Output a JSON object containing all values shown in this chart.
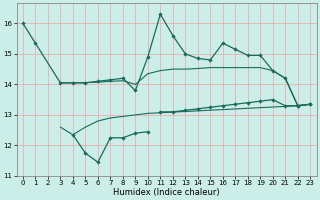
{
  "title": "",
  "xlabel": "Humidex (Indice chaleur)",
  "background_color": "#cceee8",
  "grid_color": "#e8b0b0",
  "line_color": "#1a6b5a",
  "xlim": [
    -0.5,
    23.5
  ],
  "ylim": [
    11.0,
    16.65
  ],
  "yticks": [
    11,
    12,
    13,
    14,
    15,
    16
  ],
  "xticks": [
    0,
    1,
    2,
    3,
    4,
    5,
    6,
    7,
    8,
    9,
    10,
    11,
    12,
    13,
    14,
    15,
    16,
    17,
    18,
    19,
    20,
    21,
    22,
    23
  ],
  "line1_x": [
    0,
    1,
    3,
    4,
    5,
    6,
    7,
    8,
    9,
    10,
    11,
    12,
    13,
    14,
    15,
    16,
    17,
    18,
    19,
    20,
    21,
    22,
    23
  ],
  "line1_y": [
    16.0,
    15.35,
    14.05,
    14.05,
    14.05,
    14.1,
    14.15,
    14.2,
    13.8,
    14.9,
    16.3,
    15.6,
    15.0,
    14.85,
    14.8,
    15.35,
    15.15,
    14.95,
    14.95,
    14.45,
    14.2,
    13.3,
    13.35
  ],
  "line_upper_x": [
    3,
    4,
    5,
    6,
    7,
    8,
    9,
    10,
    11,
    12,
    13,
    14,
    15,
    16,
    17,
    18,
    19,
    20,
    21,
    22,
    23
  ],
  "line_upper_y": [
    14.05,
    14.05,
    14.06,
    14.07,
    14.1,
    14.12,
    14.0,
    14.35,
    14.45,
    14.5,
    14.5,
    14.52,
    14.55,
    14.55,
    14.55,
    14.55,
    14.55,
    14.45,
    14.2,
    13.3,
    13.35
  ],
  "line_lower_x": [
    3,
    4,
    5,
    6,
    7,
    8,
    9,
    10,
    22,
    23
  ],
  "line_lower_y": [
    12.6,
    12.35,
    12.6,
    12.8,
    12.9,
    12.95,
    13.0,
    13.05,
    13.3,
    13.35
  ],
  "line2_x": [
    4,
    5,
    6,
    7,
    8,
    9,
    10
  ],
  "line2_y": [
    12.35,
    11.75,
    11.45,
    12.25,
    12.25,
    12.4,
    12.45
  ],
  "line3_x": [
    11,
    12,
    13,
    14,
    15,
    16,
    17,
    18,
    19,
    20,
    21,
    22,
    23
  ],
  "line3_y": [
    13.1,
    13.1,
    13.15,
    13.2,
    13.25,
    13.3,
    13.35,
    13.4,
    13.45,
    13.5,
    13.3,
    13.3,
    13.35
  ]
}
